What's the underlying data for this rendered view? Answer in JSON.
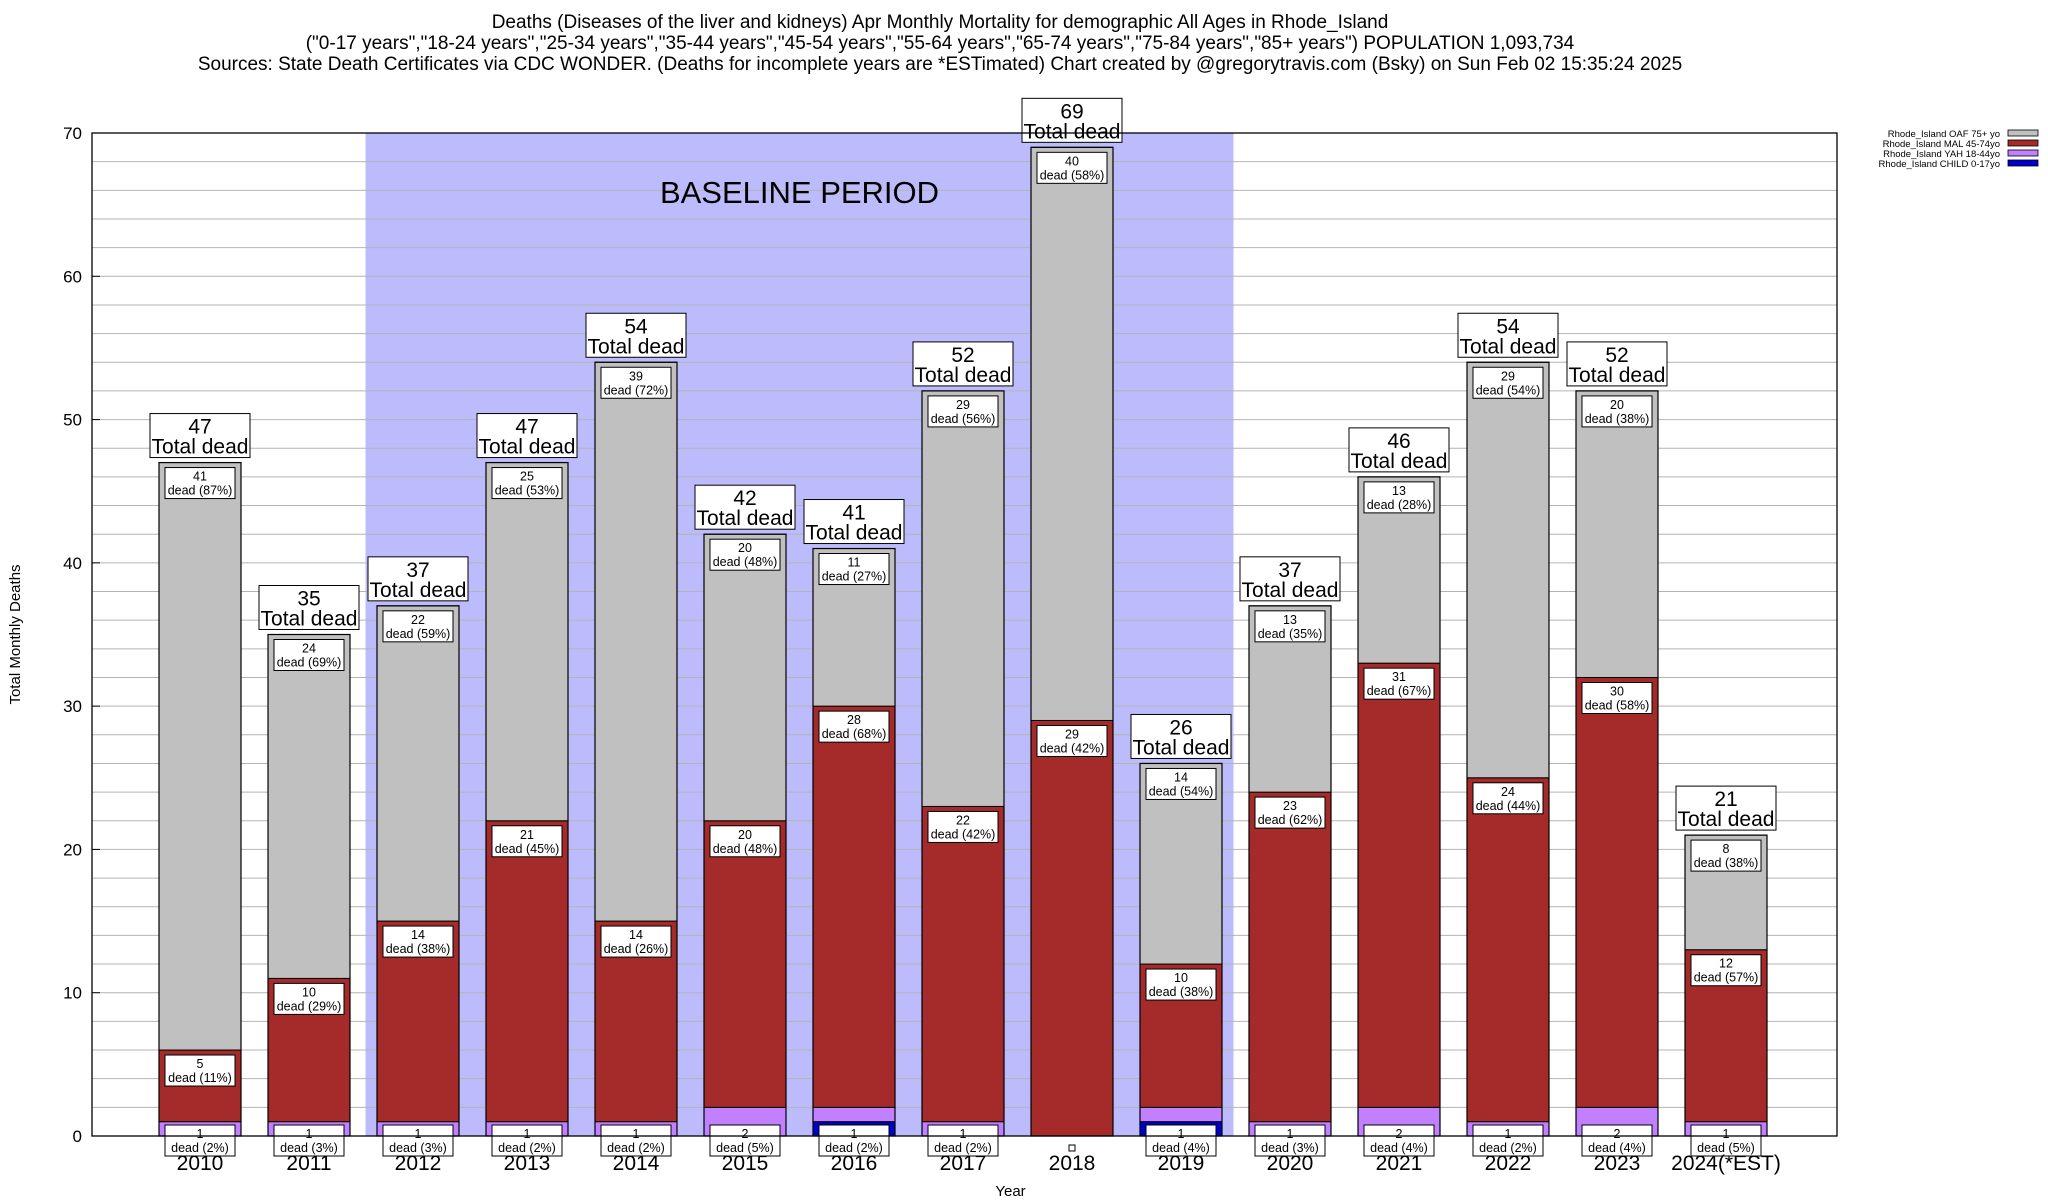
{
  "header": {
    "line1": "Deaths (Diseases of the liver and kidneys) Apr Monthly Mortality for demographic All Ages in Rhode_Island",
    "line2": "(\"0-17 years\",\"18-24 years\",\"25-34 years\",\"35-44 years\",\"45-54 years\",\"55-64 years\",\"65-74 years\",\"75-84 years\",\"85+ years\") POPULATION 1,093,734",
    "line3": "Sources: State Death Certificates via CDC WONDER. (Deaths for incomplete years are *ESTimated)              Chart created by @gregorytravis.com (Bsky) on Sun Feb 02 15:35:24 2025"
  },
  "chart_data": {
    "type": "bar",
    "stacked": true,
    "xlabel": "Year",
    "ylabel": "Total Monthly Deaths",
    "ylim": [
      0,
      70
    ],
    "yticks": [
      0,
      10,
      20,
      30,
      40,
      50,
      60,
      70
    ],
    "categories": [
      "2010",
      "2011",
      "2012",
      "2013",
      "2014",
      "2015",
      "2016",
      "2017",
      "2018",
      "2019",
      "2020",
      "2021",
      "2022",
      "2023",
      "2024(*EST)"
    ],
    "baseline_label": "BASELINE PERIOD",
    "baseline_range": [
      "2012",
      "2019"
    ],
    "total_label": "Total dead",
    "dead_word": "dead",
    "series": [
      {
        "name": "Rhode_Island CHILD 0-17yo",
        "color": "#0000cc",
        "values": [
          0,
          0,
          0,
          0,
          0,
          0,
          1,
          0,
          0,
          1,
          0,
          0,
          0,
          0,
          0
        ]
      },
      {
        "name": "Rhode_Island YAH 18-44yo",
        "color": "#c080ff",
        "values": [
          1,
          1,
          1,
          1,
          1,
          2,
          1,
          1,
          0,
          1,
          1,
          2,
          1,
          2,
          1
        ]
      },
      {
        "name": "Rhode_Island MAL 45-74yo",
        "color": "#a52a2a",
        "values": [
          5,
          10,
          14,
          21,
          14,
          20,
          28,
          22,
          29,
          10,
          23,
          31,
          24,
          30,
          12
        ]
      },
      {
        "name": "Rhode_Island OAF 75+ yo",
        "color": "#c0c0c0",
        "values": [
          41,
          24,
          22,
          25,
          39,
          20,
          11,
          29,
          40,
          14,
          13,
          13,
          29,
          20,
          8
        ]
      }
    ],
    "totals": [
      47,
      35,
      37,
      47,
      54,
      42,
      41,
      52,
      69,
      26,
      37,
      46,
      54,
      52,
      21
    ],
    "seg_labels": {
      "Rhode_Island YAH 18-44yo": [
        "1|dead (2%)",
        "1|dead (3%)",
        "1|dead (3%)",
        "1|dead (2%)",
        "1|dead (2%)",
        "2|dead (5%)",
        "1|dead (2%)",
        "1|dead (2%)",
        "",
        "1|dead (4%)",
        "1|dead (3%)",
        "2|dead (4%)",
        "1|dead (2%)",
        "2|dead (4%)",
        "1|dead (5%)"
      ],
      "Rhode_Island MAL 45-74yo": [
        "5|dead (11%)",
        "10|dead (29%)",
        "14|dead (38%)",
        "21|dead (45%)",
        "14|dead (26%)",
        "20|dead (48%)",
        "28|dead (68%)",
        "22|dead (42%)",
        "29|dead (42%)",
        "10|dead (38%)",
        "23|dead (62%)",
        "31|dead (67%)",
        "24|dead (44%)",
        "30|dead (58%)",
        "12|dead (57%)"
      ],
      "Rhode_Island OAF 75+ yo": [
        "41|dead (87%)",
        "24|dead (69%)",
        "22|dead (59%)",
        "25|dead (53%)",
        "39|dead (72%)",
        "20|dead (48%)",
        "11|dead (27%)",
        "29|dead (56%)",
        "40|dead (58%)",
        "14|dead (54%)",
        "13|dead (35%)",
        "13|dead (28%)",
        "29|dead (54%)",
        "20|dead (38%)",
        "8|dead (38%)"
      ]
    },
    "colors": {
      "baseline": "#bcbcfc",
      "grid": "#b4b4b4"
    },
    "grid": true,
    "legend_position": "top-right"
  }
}
